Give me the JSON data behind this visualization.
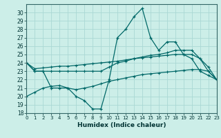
{
  "title": "",
  "xlabel": "Humidex (Indice chaleur)",
  "bg_color": "#cceee8",
  "grid_color": "#aad8d4",
  "line_color": "#006868",
  "x": [
    0,
    1,
    2,
    3,
    4,
    5,
    6,
    7,
    8,
    9,
    10,
    11,
    12,
    13,
    14,
    15,
    16,
    17,
    18,
    19,
    20,
    21,
    22,
    23
  ],
  "line1": [
    24,
    23,
    23,
    21,
    21,
    21,
    20,
    19.5,
    18.5,
    18.5,
    22,
    27,
    28,
    29.5,
    30.5,
    27,
    25.5,
    26.5,
    26.5,
    25,
    24.5,
    23,
    22.5,
    22
  ],
  "line2": [
    24,
    23,
    23,
    23,
    23,
    23,
    23,
    23,
    23,
    23,
    23.5,
    24,
    24.2,
    24.5,
    24.7,
    24.9,
    25,
    25.2,
    25.5,
    25.5,
    25.5,
    24.5,
    23,
    22
  ],
  "line3": [
    24,
    23.3,
    23.4,
    23.5,
    23.6,
    23.6,
    23.7,
    23.8,
    23.9,
    24,
    24.1,
    24.2,
    24.35,
    24.5,
    24.6,
    24.7,
    24.8,
    24.9,
    25.0,
    25.0,
    25.0,
    24.5,
    23.5,
    22
  ],
  "line4": [
    20,
    20.5,
    21,
    21.2,
    21.3,
    21.0,
    20.8,
    21.0,
    21.2,
    21.5,
    21.8,
    22,
    22.2,
    22.4,
    22.6,
    22.7,
    22.8,
    22.9,
    23.0,
    23.1,
    23.2,
    23.2,
    23.0,
    22
  ],
  "ylim": [
    18,
    31
  ],
  "yticks": [
    18,
    19,
    20,
    21,
    22,
    23,
    24,
    25,
    26,
    27,
    28,
    29,
    30
  ],
  "xlim": [
    0,
    23
  ]
}
